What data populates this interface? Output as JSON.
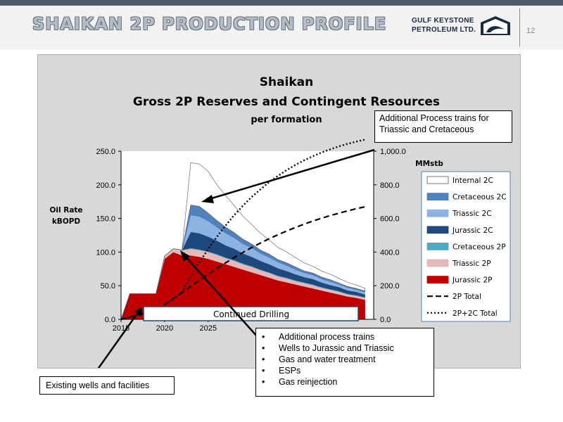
{
  "slide": {
    "title": "SHAIKAN 2P PRODUCTION PROFILE",
    "logo_line1": "GULF KEYSTONE",
    "logo_line2": "PETROLEUM LTD.",
    "page_number": "12"
  },
  "colors": {
    "jurassic_2p": "#c00000",
    "triassic_2p": "#e6b8b7",
    "cretaceous_2p": "#4bacc6",
    "jurassic_2c": "#1f497d",
    "triassic_2c": "#8db3e2",
    "cretaceous_2c": "#4f81bd",
    "internal_2c": "#ffffff",
    "plot_bg": "#ffffff",
    "frame_bg": "#d8d8d8"
  },
  "chart_data": {
    "type": "area",
    "title": "Shaikan",
    "subtitle": "Gross 2P Reserves and Contingent Resources",
    "subtitle2": "per formation",
    "ylabel": "Oil Rate kBOPD",
    "ylabel_line1": "Oil Rate",
    "ylabel_line2": "kBOPD",
    "y2label": "MMstb",
    "ylim": [
      0,
      250
    ],
    "y2lim": [
      0,
      1000
    ],
    "yticks": [
      "0.0",
      "50.0",
      "100.0",
      "150.0",
      "200.0",
      "250.0"
    ],
    "y2ticks": [
      "0.0",
      "200.0",
      "400.0",
      "600.0",
      "800.0",
      "1,000.0"
    ],
    "xticks": [
      "2015",
      "2020",
      "2025"
    ],
    "xlim": [
      2015,
      2044
    ],
    "grid": false,
    "legend_position": "right",
    "x": [
      2015,
      2016,
      2017,
      2018,
      2019,
      2020,
      2021,
      2022,
      2023,
      2024,
      2025,
      2026,
      2027,
      2028,
      2029,
      2030,
      2031,
      2032,
      2033,
      2034,
      2035,
      2036,
      2037,
      2038,
      2039,
      2040,
      2041,
      2042,
      2043
    ],
    "series": [
      {
        "name": "Jurassic 2P",
        "color_key": "jurassic_2p",
        "values": [
          0,
          38,
          38,
          38,
          38,
          90,
          100,
          95,
          95,
          93,
          90,
          86,
          82,
          78,
          74,
          70,
          66,
          62,
          58,
          55,
          52,
          49,
          46,
          43,
          40,
          37,
          34,
          32,
          29
        ]
      },
      {
        "name": "Triassic 2P",
        "color_key": "triassic_2p",
        "values": [
          0,
          0,
          0,
          0,
          0,
          4,
          5,
          8,
          10,
          10,
          10,
          10,
          9,
          9,
          8,
          8,
          7,
          7,
          6,
          6,
          5,
          5,
          5,
          4,
          4,
          4,
          3,
          3,
          3
        ]
      },
      {
        "name": "Cretaceous 2P",
        "color_key": "cretaceous_2p",
        "values": [
          0,
          0,
          0,
          0,
          0,
          0,
          0,
          0,
          1,
          1,
          1,
          1,
          1,
          1,
          1,
          1,
          1,
          1,
          1,
          1,
          1,
          1,
          1,
          1,
          1,
          1,
          1,
          1,
          1
        ]
      },
      {
        "name": "Jurassic 2C",
        "color_key": "jurassic_2c",
        "values": [
          0,
          0,
          0,
          0,
          0,
          0,
          0,
          0,
          24,
          24,
          22,
          20,
          18,
          17,
          15,
          14,
          13,
          12,
          11,
          10,
          9,
          8,
          8,
          7,
          6,
          6,
          5,
          5,
          4
        ]
      },
      {
        "name": "Triassic 2C",
        "color_key": "triassic_2c",
        "values": [
          0,
          0,
          0,
          0,
          0,
          0,
          0,
          0,
          25,
          25,
          23,
          20,
          18,
          16,
          14,
          13,
          11,
          10,
          9,
          8,
          7,
          6,
          6,
          5,
          5,
          4,
          4,
          3,
          3
        ]
      },
      {
        "name": "Cretaceous 2C",
        "color_key": "cretaceous_2c",
        "values": [
          0,
          0,
          0,
          0,
          0,
          0,
          0,
          0,
          15,
          15,
          12,
          10,
          9,
          8,
          7,
          6,
          5,
          5,
          4,
          4,
          4,
          3,
          3,
          3,
          3,
          2,
          2,
          2,
          2
        ]
      },
      {
        "name": "Internal 2C",
        "color_key": "internal_2c",
        "values": [
          0,
          0,
          0,
          0,
          0,
          0,
          0,
          0,
          63,
          63,
          62,
          53,
          47,
          40,
          34,
          29,
          25,
          21,
          18,
          16,
          14,
          12,
          10,
          9,
          8,
          7,
          6,
          5,
          4
        ]
      }
    ],
    "cumulative_series": [
      {
        "name": "2P Total",
        "axis": "secondary",
        "style": "dashed",
        "values": [
          0,
          13,
          27,
          40,
          54,
          87,
          123,
          159,
          196,
          232,
          268,
          303,
          336,
          368,
          398,
          427,
          454,
          479,
          503,
          525,
          546,
          566,
          584,
          601,
          617,
          631,
          645,
          658,
          669
        ]
      },
      {
        "name": "2P+2C Total",
        "axis": "secondary",
        "style": "dotted",
        "values": [
          0,
          13,
          27,
          40,
          54,
          87,
          123,
          159,
          257,
          339,
          418,
          491,
          558,
          620,
          676,
          728,
          773,
          816,
          853,
          887,
          918,
          945,
          970,
          992,
          1011,
          1029,
          1044,
          1057,
          1069
        ]
      }
    ],
    "annotations": {
      "continued_drilling": "Continued Drilling"
    }
  },
  "callouts": {
    "top": "Additional Process trains for Triassic and Cretaceous",
    "left": "Existing wells and facilities",
    "middle_items": [
      "Additional process trains",
      "Wells to Jurassic and Triassic",
      "Gas and water treatment",
      "ESPs",
      "Gas reinjection"
    ]
  }
}
